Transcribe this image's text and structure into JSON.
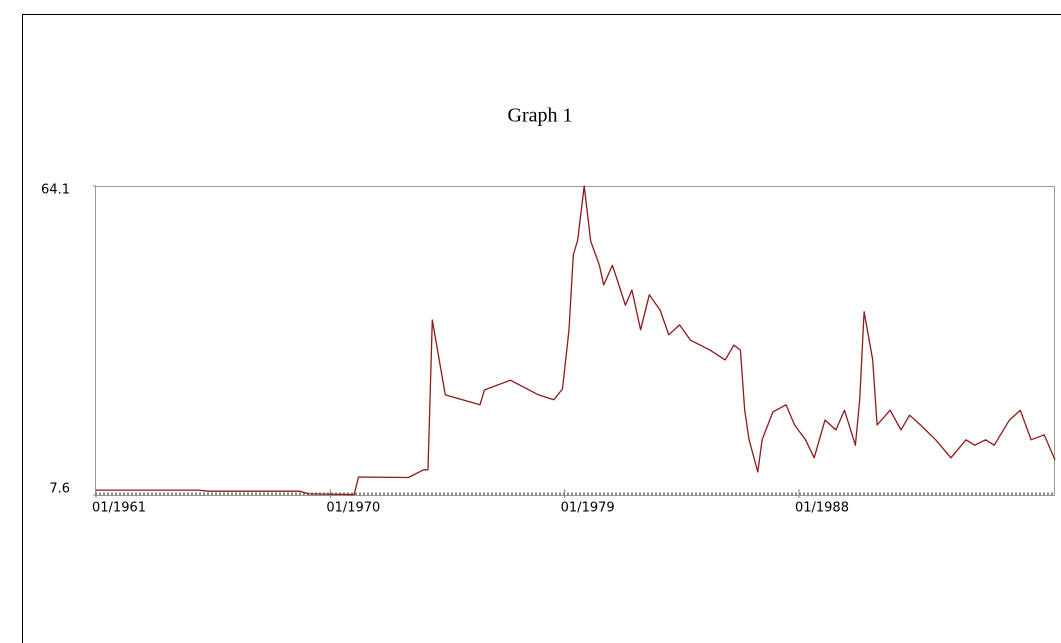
{
  "chart_data": {
    "type": "line",
    "title": "Graph 1",
    "x": [
      "01/1961",
      "12/1964",
      "05/1965",
      "11/1968",
      "03/1969",
      "10/1970",
      "12/1970",
      "02/1971",
      "01/1973",
      "08/1973",
      "10/1973",
      "12/1973",
      "06/1974",
      "10/1975",
      "12/1975",
      "12/1976",
      "01/1978",
      "08/1978",
      "12/1978",
      "03/1979",
      "05/1979",
      "07/1979",
      "10/1979",
      "01/1980",
      "05/1980",
      "07/1980",
      "11/1980",
      "02/1981",
      "05/1981",
      "08/1981",
      "12/1981",
      "04/1982",
      "09/1982",
      "01/1983",
      "06/1983",
      "11/1983",
      "08/1984",
      "03/1985",
      "07/1985",
      "10/1985",
      "12/1985",
      "02/1986",
      "06/1986",
      "08/1986",
      "01/1987",
      "07/1987",
      "11/1987",
      "04/1988",
      "08/1988",
      "01/1989",
      "06/1989",
      "10/1989",
      "03/1990",
      "05/1990",
      "07/1990",
      "11/1990",
      "01/1991",
      "07/1991",
      "12/1991",
      "04/1992",
      "09/1992",
      "04/1993",
      "11/1993",
      "06/1994",
      "10/1994",
      "03/1995",
      "07/1995",
      "02/1996",
      "07/1996",
      "12/1996",
      "06/1997",
      "11/1997"
    ],
    "series": [
      {
        "color": "#8b1a1a",
        "values": [
          8.5,
          8.5,
          8.3,
          8.3,
          7.8,
          7.7,
          7.7,
          10.9,
          10.8,
          12.2,
          12.2,
          39.6,
          25.9,
          24.1,
          26.8,
          28.6,
          25.9,
          25.0,
          27.0,
          37.8,
          51.5,
          54.2,
          64.1,
          54.0,
          49.6,
          46.0,
          49.6,
          46.0,
          42.3,
          45.1,
          37.8,
          44.2,
          41.4,
          36.9,
          38.7,
          35.9,
          34.1,
          32.3,
          35.0,
          34.1,
          23.1,
          17.7,
          11.8,
          17.7,
          22.8,
          24.1,
          20.4,
          17.7,
          14.4,
          21.3,
          19.5,
          23.1,
          16.7,
          25.0,
          41.1,
          32.3,
          20.4,
          23.1,
          19.5,
          22.2,
          20.4,
          17.7,
          14.4,
          17.7,
          16.7,
          17.7,
          16.7,
          21.3,
          23.1,
          17.7,
          18.6,
          14.0
        ]
      }
    ],
    "xlim": [
      "01/1961",
      "11/1997"
    ],
    "xticks": [
      "01/1961",
      "01/1970",
      "01/1979",
      "01/1988"
    ],
    "ylim": [
      7.6,
      64.1
    ],
    "yticks": [
      7.6,
      64.1
    ]
  }
}
